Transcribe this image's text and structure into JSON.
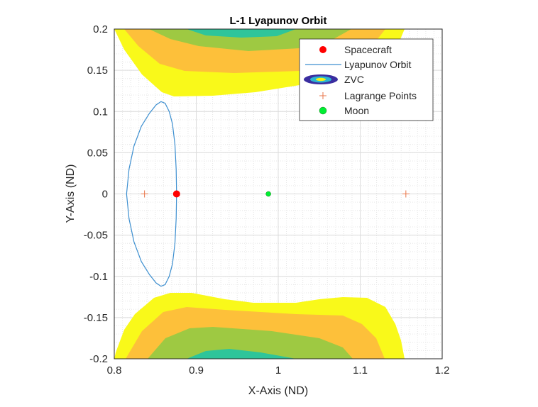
{
  "chart_data": {
    "type": "line",
    "title": "L-1 Lyapunov Orbit",
    "xlabel": "X-Axis (ND)",
    "ylabel": "Y-Axis (ND)",
    "xlim": [
      0.8,
      1.2
    ],
    "ylim": [
      -0.2,
      0.2
    ],
    "xticks": [
      "0.8",
      "0.9",
      "1",
      "1.1",
      "1.2"
    ],
    "yticks": [
      "0.2",
      "0.15",
      "0.1",
      "0.05",
      "0",
      "-0.05",
      "-0.1",
      "-0.15",
      "-0.2"
    ],
    "grid": true,
    "minor_grid": true,
    "legend_position": "top-right",
    "legend": [
      "Spacecraft",
      "Lyapunov Orbit",
      "ZVC",
      "Lagrange Points",
      "Moon"
    ],
    "spacecraft": {
      "x": 0.876,
      "y": 0,
      "color": "#ff0000"
    },
    "moon": {
      "x": 0.988,
      "y": 0,
      "color": "#00ee33"
    },
    "lagrange_points": [
      {
        "x": 0.8369,
        "y": 0
      },
      {
        "x": 1.1557,
        "y": 0
      }
    ],
    "lagrange_color": "#e8764a",
    "orbit_color": "#3d8fd0",
    "orbit": [
      [
        0.876,
        0
      ],
      [
        0.8755,
        0.03
      ],
      [
        0.874,
        0.06
      ],
      [
        0.871,
        0.085
      ],
      [
        0.867,
        0.1
      ],
      [
        0.862,
        0.11
      ],
      [
        0.857,
        0.112
      ],
      [
        0.851,
        0.108
      ],
      [
        0.843,
        0.098
      ],
      [
        0.833,
        0.082
      ],
      [
        0.824,
        0.058
      ],
      [
        0.818,
        0.03
      ],
      [
        0.815,
        0
      ],
      [
        0.818,
        -0.03
      ],
      [
        0.824,
        -0.058
      ],
      [
        0.833,
        -0.082
      ],
      [
        0.843,
        -0.098
      ],
      [
        0.851,
        -0.108
      ],
      [
        0.857,
        -0.112
      ],
      [
        0.862,
        -0.11
      ],
      [
        0.867,
        -0.1
      ],
      [
        0.871,
        -0.085
      ],
      [
        0.874,
        -0.06
      ],
      [
        0.8755,
        -0.03
      ],
      [
        0.876,
        0
      ]
    ],
    "zvc_colors": [
      "#f9f91a",
      "#fdc03a",
      "#9ec942",
      "#2ec59a"
    ]
  }
}
